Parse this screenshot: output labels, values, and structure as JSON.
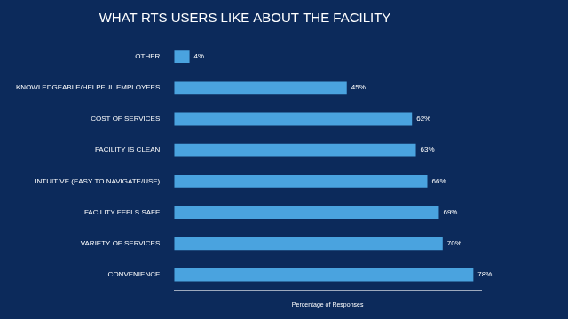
{
  "chart_data": {
    "type": "bar",
    "orientation": "horizontal",
    "title": "WHAT RTS USERS LIKE ABOUT THE FACILITY",
    "x_label": "Percentage of Responses",
    "categories": [
      "OTHER",
      "KNOWLEDGEABLE/HELPFUL EMPLOYEES",
      "COST OF SERVICES",
      "FACILITY IS CLEAN",
      "INTUITIVE (EASY TO NAVIGATE/USE)",
      "FACILITY FEELS SAFE",
      "VARIETY OF SERVICES",
      "CONVENIENCE"
    ],
    "values": [
      4,
      45,
      62,
      63,
      66,
      69,
      70,
      78
    ],
    "value_labels": [
      "4%",
      "45%",
      "62%",
      "63%",
      "66%",
      "69%",
      "70%",
      "78%"
    ],
    "data_labels": true,
    "color": "#4aa3df",
    "xlim": [
      0,
      80
    ],
    "grid": false,
    "tick_labels": "y"
  }
}
